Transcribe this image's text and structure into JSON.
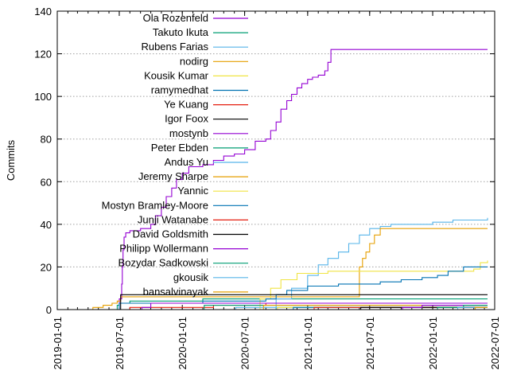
{
  "chart_data": {
    "type": "line",
    "title": "",
    "xlabel": "",
    "ylabel": "Commits",
    "xlim": [
      "2019-01-01",
      "2022-07-01"
    ],
    "ylim": [
      0,
      140
    ],
    "x_ticks": [
      "2019-01-01",
      "2019-07-01",
      "2020-01-01",
      "2020-07-01",
      "2021-01-01",
      "2021-07-01",
      "2022-01-01",
      "2022-07-01"
    ],
    "y_ticks": [
      0,
      20,
      40,
      60,
      80,
      100,
      120,
      140
    ],
    "grid": true,
    "legend_position": "top-left",
    "series": [
      {
        "name": "Ola Rozenfeld",
        "color": "#9400d3",
        "points": [
          [
            "2019-06-20",
            0
          ],
          [
            "2019-07-01",
            5
          ],
          [
            "2019-07-08",
            12
          ],
          [
            "2019-07-10",
            20
          ],
          [
            "2019-07-12",
            28
          ],
          [
            "2019-07-15",
            34
          ],
          [
            "2019-07-20",
            36
          ],
          [
            "2019-08-01",
            37
          ],
          [
            "2019-09-01",
            38
          ],
          [
            "2019-10-01",
            40
          ],
          [
            "2019-10-15",
            44
          ],
          [
            "2019-11-01",
            48
          ],
          [
            "2019-11-15",
            53
          ],
          [
            "2019-12-01",
            57
          ],
          [
            "2019-12-15",
            61
          ],
          [
            "2020-01-01",
            64
          ],
          [
            "2020-01-20",
            67
          ],
          [
            "2020-03-01",
            68
          ],
          [
            "2020-04-01",
            70
          ],
          [
            "2020-05-01",
            72
          ],
          [
            "2020-06-01",
            73
          ],
          [
            "2020-07-01",
            75
          ],
          [
            "2020-08-01",
            79
          ],
          [
            "2020-09-01",
            80
          ],
          [
            "2020-09-15",
            84
          ],
          [
            "2020-10-01",
            88
          ],
          [
            "2020-10-15",
            94
          ],
          [
            "2020-11-01",
            98
          ],
          [
            "2020-11-15",
            101
          ],
          [
            "2020-12-01",
            104
          ],
          [
            "2020-12-15",
            106
          ],
          [
            "2021-01-01",
            108
          ],
          [
            "2021-01-15",
            109
          ],
          [
            "2021-02-01",
            110
          ],
          [
            "2021-02-20",
            112
          ],
          [
            "2021-03-01",
            116
          ],
          [
            "2021-03-10",
            122
          ],
          [
            "2022-06-10",
            122
          ]
        ]
      },
      {
        "name": "Takuto Ikuta",
        "color": "#009e73",
        "points": [
          [
            "2019-06-20",
            0
          ],
          [
            "2019-06-25",
            2
          ],
          [
            "2019-07-01",
            3
          ],
          [
            "2019-08-01",
            4
          ],
          [
            "2020-03-01",
            5
          ],
          [
            "2022-06-10",
            5
          ]
        ]
      },
      {
        "name": "Rubens Farias",
        "color": "#56b4e9",
        "points": [
          [
            "2020-08-01",
            0
          ],
          [
            "2020-10-01",
            5
          ],
          [
            "2020-11-15",
            10
          ],
          [
            "2021-01-01",
            16
          ],
          [
            "2021-02-01",
            21
          ],
          [
            "2021-03-01",
            24
          ],
          [
            "2021-04-01",
            27
          ],
          [
            "2021-05-01",
            31
          ],
          [
            "2021-06-01",
            35
          ],
          [
            "2021-07-01",
            38
          ],
          [
            "2021-08-01",
            39
          ],
          [
            "2021-09-01",
            40
          ],
          [
            "2021-11-01",
            40
          ],
          [
            "2022-01-01",
            41
          ],
          [
            "2022-03-01",
            42
          ],
          [
            "2022-06-10",
            43
          ]
        ]
      },
      {
        "name": "nodirg",
        "color": "#e69f00",
        "points": [
          [
            "2019-04-01",
            0
          ],
          [
            "2019-04-15",
            1
          ],
          [
            "2019-05-15",
            2
          ],
          [
            "2019-06-10",
            3
          ],
          [
            "2019-06-25",
            4
          ],
          [
            "2019-07-05",
            6
          ],
          [
            "2019-09-01",
            6
          ],
          [
            "2021-05-20",
            6
          ],
          [
            "2021-06-01",
            20
          ],
          [
            "2021-06-10",
            24
          ],
          [
            "2021-06-20",
            27
          ],
          [
            "2021-07-01",
            31
          ],
          [
            "2021-07-15",
            35
          ],
          [
            "2021-08-01",
            38
          ],
          [
            "2022-06-10",
            38
          ]
        ]
      },
      {
        "name": "Kousik Kumar",
        "color": "#f0e442",
        "points": [
          [
            "2020-07-15",
            0
          ],
          [
            "2020-08-15",
            5
          ],
          [
            "2020-09-15",
            10
          ],
          [
            "2020-10-15",
            14
          ],
          [
            "2020-12-01",
            17
          ],
          [
            "2021-03-01",
            18
          ],
          [
            "2022-05-01",
            19
          ],
          [
            "2022-05-20",
            22
          ],
          [
            "2022-06-10",
            23
          ]
        ]
      },
      {
        "name": "ramymedhat",
        "color": "#0072b2",
        "points": [
          [
            "2019-06-20",
            0
          ],
          [
            "2019-07-01",
            3
          ],
          [
            "2020-03-01",
            4
          ],
          [
            "2020-09-01",
            5
          ],
          [
            "2020-10-01",
            7
          ],
          [
            "2020-11-01",
            9
          ],
          [
            "2021-01-01",
            11
          ],
          [
            "2021-04-01",
            12
          ],
          [
            "2021-08-01",
            13
          ],
          [
            "2021-10-01",
            14
          ],
          [
            "2021-12-01",
            15
          ],
          [
            "2022-01-15",
            16
          ],
          [
            "2022-02-15",
            18
          ],
          [
            "2022-04-01",
            20
          ],
          [
            "2022-06-10",
            20
          ]
        ]
      },
      {
        "name": "Ye Kuang",
        "color": "#e51e10",
        "points": [
          [
            "2019-07-01",
            0
          ],
          [
            "2019-08-01",
            1
          ],
          [
            "2020-04-01",
            2
          ],
          [
            "2020-09-01",
            3
          ],
          [
            "2022-06-10",
            3
          ]
        ]
      },
      {
        "name": "Igor Foox",
        "color": "#000000",
        "points": [
          [
            "2019-07-01",
            0
          ],
          [
            "2019-07-05",
            7
          ],
          [
            "2021-06-01",
            7
          ],
          [
            "2021-09-01",
            7
          ],
          [
            "2022-06-10",
            7
          ]
        ]
      },
      {
        "name": "mostynb",
        "color": "#9400d3",
        "points": [
          [
            "2019-09-01",
            0
          ],
          [
            "2019-09-05",
            1
          ],
          [
            "2019-10-01",
            3
          ],
          [
            "2020-06-01",
            3
          ],
          [
            "2021-09-01",
            3
          ],
          [
            "2022-06-10",
            3
          ]
        ]
      },
      {
        "name": "Peter Ebden",
        "color": "#009e73",
        "points": [
          [
            "2020-03-01",
            0
          ],
          [
            "2020-03-05",
            2
          ],
          [
            "2021-06-01",
            2
          ],
          [
            "2022-06-10",
            2
          ]
        ]
      },
      {
        "name": "Andus Yu",
        "color": "#56b4e9",
        "points": [
          [
            "2020-06-01",
            0
          ],
          [
            "2020-06-05",
            1
          ],
          [
            "2022-06-10",
            1
          ]
        ]
      },
      {
        "name": "Jeremy Sharpe",
        "color": "#e69f00",
        "points": [
          [
            "2020-08-20",
            0
          ],
          [
            "2020-08-25",
            2
          ],
          [
            "2022-06-10",
            2
          ]
        ]
      },
      {
        "name": "Yannic",
        "color": "#f0e442",
        "points": [
          [
            "2020-10-01",
            0
          ],
          [
            "2020-10-05",
            1
          ],
          [
            "2022-06-10",
            1
          ]
        ]
      },
      {
        "name": "Mostyn Bramley-Moore",
        "color": "#0072b2",
        "points": [
          [
            "2020-11-15",
            0
          ],
          [
            "2020-11-20",
            1
          ],
          [
            "2022-06-10",
            1
          ]
        ]
      },
      {
        "name": "Junji Watanabe",
        "color": "#e51e10",
        "points": [
          [
            "2021-01-15",
            0
          ],
          [
            "2021-01-20",
            1
          ],
          [
            "2022-06-10",
            1
          ]
        ]
      },
      {
        "name": "David Goldsmith",
        "color": "#000000",
        "points": [
          [
            "2021-06-01",
            0
          ],
          [
            "2021-06-05",
            1
          ],
          [
            "2022-06-10",
            1
          ]
        ]
      },
      {
        "name": "Philipp Wollermann",
        "color": "#9400d3",
        "points": [
          [
            "2021-10-01",
            0
          ],
          [
            "2021-10-05",
            1
          ],
          [
            "2021-12-01",
            2
          ],
          [
            "2022-06-10",
            2
          ]
        ]
      },
      {
        "name": "Bozydar Sadkowski",
        "color": "#009e73",
        "points": [
          [
            "2022-01-10",
            0
          ],
          [
            "2022-01-15",
            1
          ],
          [
            "2022-04-01",
            2
          ],
          [
            "2022-06-10",
            2
          ]
        ]
      },
      {
        "name": "gkousik",
        "color": "#56b4e9",
        "points": [
          [
            "2022-03-10",
            0
          ],
          [
            "2022-03-15",
            1
          ],
          [
            "2022-06-10",
            1
          ]
        ]
      },
      {
        "name": "bansalvinayak",
        "color": "#e69f00",
        "points": [
          [
            "2022-05-01",
            0
          ],
          [
            "2022-05-05",
            1
          ],
          [
            "2022-06-10",
            1
          ]
        ]
      }
    ]
  }
}
